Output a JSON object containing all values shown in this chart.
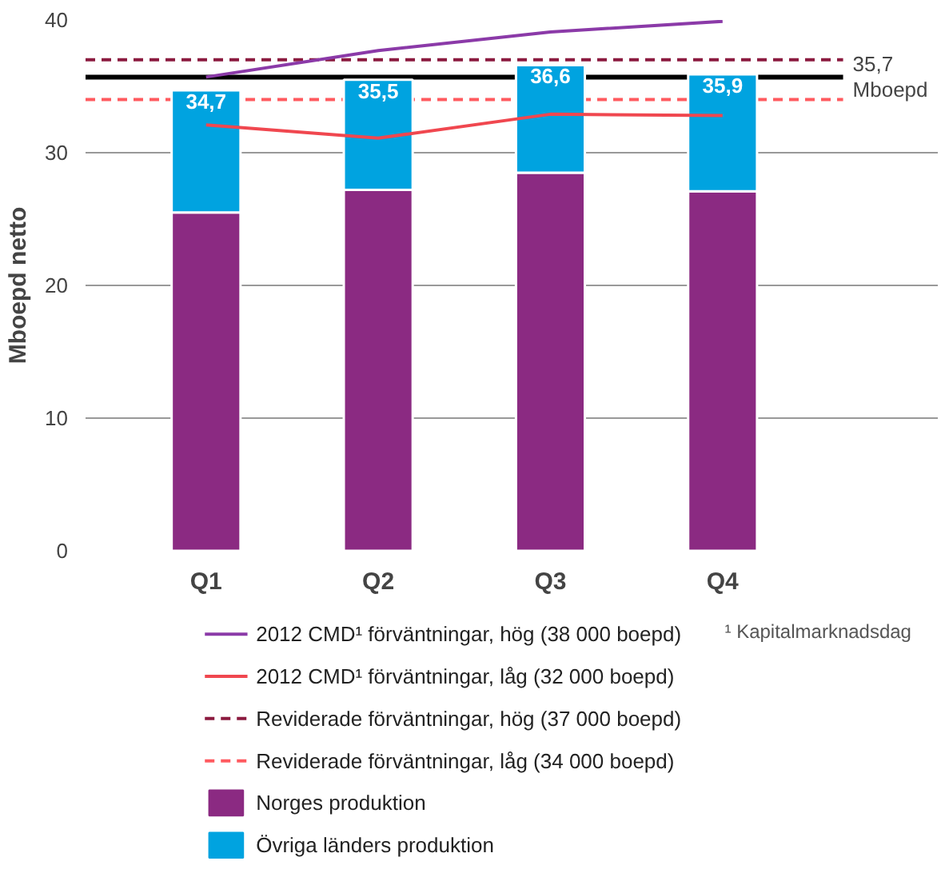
{
  "chart_data": {
    "type": "bar",
    "stacked": true,
    "ylabel": "Mboepd netto",
    "categories": [
      "Q1",
      "Q2",
      "Q3",
      "Q4"
    ],
    "series": [
      {
        "name": "Norges produktion",
        "color": "#8b2a82",
        "values": [
          25.5,
          27.2,
          28.5,
          27.1
        ]
      },
      {
        "name": "Övriga länders produktion",
        "color": "#00a3e0",
        "values": [
          9.2,
          8.3,
          8.1,
          8.8
        ]
      },
      {
        "name": "2012 CMD¹ förväntningar, hög (38 000 boepd)",
        "type": "line",
        "color": "#8b3aa8",
        "values": [
          35.7,
          37.7,
          39.1,
          39.9
        ]
      },
      {
        "name": "2012 CMD¹ förväntningar, låg (32 000 boepd)",
        "type": "line",
        "color": "#f0474f",
        "values": [
          32.1,
          31.1,
          32.9,
          32.8
        ]
      }
    ],
    "totals": [
      "34,7",
      "35,5",
      "36,6",
      "35,9"
    ],
    "ref_lines": [
      {
        "axis": "y",
        "value": 37,
        "label": "Reviderade förväntningar, hög (37 000 boepd)",
        "color": "#8b1a3f",
        "line_style": "dashed"
      },
      {
        "axis": "y",
        "value": 34,
        "label": "Reviderade förväntningar, låg (34 000 boepd)",
        "color": "#ff5a5f",
        "line_style": "dashed"
      },
      {
        "axis": "y",
        "value": 35.7,
        "label": "35,7 Mboepd",
        "color": "#000000",
        "line_style": "solid"
      }
    ],
    "annotations": [
      "¹ Kapitalmarknadsdag"
    ],
    "ylim": [
      0,
      40
    ],
    "yticks": [
      0,
      10,
      20,
      30,
      40
    ],
    "grid": "y",
    "legend": "bottom"
  }
}
